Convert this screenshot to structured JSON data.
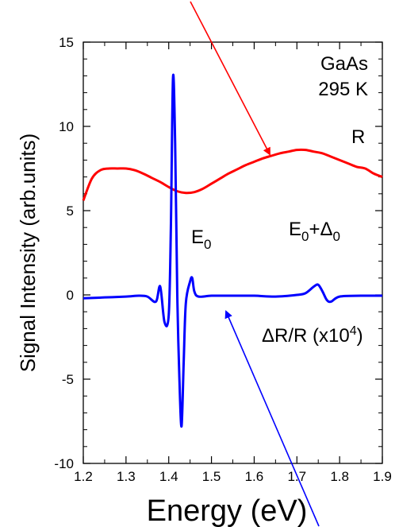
{
  "chart_data": {
    "type": "line",
    "xlabel": "Energy (eV)",
    "ylabel": "Signal Intensity (arb.units)",
    "xlim": [
      1.2,
      1.9
    ],
    "ylim": [
      -10,
      15
    ],
    "x_ticks": [
      1.2,
      1.3,
      1.4,
      1.5,
      1.6,
      1.7,
      1.8,
      1.9
    ],
    "y_ticks": [
      -10,
      -5,
      0,
      5,
      10,
      15
    ],
    "grid": false,
    "series": [
      {
        "name": "R",
        "color": "#ff0000",
        "x": [
          1.2,
          1.22,
          1.24,
          1.26,
          1.28,
          1.3,
          1.32,
          1.34,
          1.36,
          1.38,
          1.4,
          1.42,
          1.44,
          1.46,
          1.48,
          1.5,
          1.52,
          1.54,
          1.56,
          1.58,
          1.6,
          1.62,
          1.64,
          1.66,
          1.68,
          1.7,
          1.72,
          1.74,
          1.76,
          1.78,
          1.8,
          1.82,
          1.84,
          1.86,
          1.88,
          1.9
        ],
        "y": [
          5.6,
          6.9,
          7.4,
          7.5,
          7.5,
          7.5,
          7.4,
          7.2,
          6.95,
          6.7,
          6.4,
          6.15,
          6.05,
          6.1,
          6.3,
          6.6,
          6.9,
          7.2,
          7.45,
          7.7,
          7.9,
          8.1,
          8.25,
          8.4,
          8.5,
          8.6,
          8.6,
          8.5,
          8.4,
          8.2,
          8.0,
          7.8,
          7.6,
          7.5,
          7.2,
          7.0
        ]
      },
      {
        "name": "ΔR/R (x10⁴)",
        "color": "#0000ff",
        "x": [
          1.2,
          1.25,
          1.3,
          1.33,
          1.35,
          1.37,
          1.38,
          1.39,
          1.4,
          1.405,
          1.41,
          1.415,
          1.42,
          1.425,
          1.43,
          1.435,
          1.44,
          1.45,
          1.455,
          1.46,
          1.47,
          1.5,
          1.55,
          1.6,
          1.65,
          1.7,
          1.72,
          1.74,
          1.75,
          1.76,
          1.77,
          1.78,
          1.8,
          1.85,
          1.9
        ],
        "y": [
          -0.2,
          -0.15,
          -0.1,
          -0.05,
          -0.1,
          -0.4,
          0.5,
          -1.6,
          -1.2,
          4.0,
          12.9,
          9.0,
          0.0,
          -5.0,
          -7.8,
          -4.0,
          -0.5,
          0.8,
          1.0,
          0.2,
          -0.1,
          -0.05,
          -0.05,
          -0.05,
          -0.1,
          0.0,
          0.1,
          0.5,
          0.6,
          0.2,
          -0.3,
          -0.4,
          -0.1,
          -0.05,
          -0.05
        ]
      }
    ],
    "annotations": {
      "material": "GaAs",
      "temperature": "295 K",
      "r_label": "R",
      "e0_main": "E",
      "e0_sub": "0",
      "e0d_main": "E",
      "e0d_sub": "0",
      "e0d_plus": "+Δ",
      "e0d_sub2": "0",
      "dr_label_main": "ΔR/R (x10",
      "dr_label_sup": "4",
      "dr_label_end": ")"
    },
    "arrow_colors": [
      "#ff0000",
      "#0000ff"
    ]
  }
}
